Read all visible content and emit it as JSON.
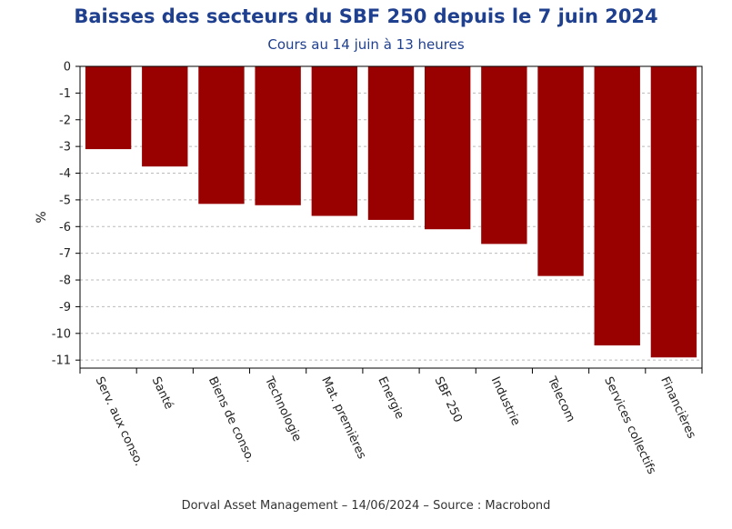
{
  "title": "Baisses des secteurs du SBF 250 depuis le 7 juin 2024",
  "subtitle": "Cours au 14 juin à 13 heures",
  "footer": "Dorval Asset Management – 14/06/2024  –   Source : Macrobond",
  "colors": {
    "bar": "#990000",
    "title": "#1f3f8f",
    "grid": "#bbbbbb"
  },
  "chart_data": {
    "type": "bar",
    "title": "Baisses des secteurs du SBF 250 depuis le 7 juin 2024",
    "subtitle": "Cours au 14 juin à 13 heures",
    "xlabel": "",
    "ylabel": "%",
    "ylim": [
      -11.3,
      0
    ],
    "yticks": [
      0,
      -1,
      -2,
      -3,
      -4,
      -5,
      -6,
      -7,
      -8,
      -9,
      -10,
      -11
    ],
    "grid": true,
    "categories": [
      "Serv. aux conso.",
      "Santé",
      "Biens de conso.",
      "Technologie",
      "Mat. premières",
      "Energie",
      "SBF 250",
      "Industrie",
      "Telecom",
      "Services collectifs",
      "Financières"
    ],
    "values": [
      -3.1,
      -3.75,
      -5.15,
      -5.2,
      -5.6,
      -5.75,
      -6.1,
      -6.65,
      -7.85,
      -10.45,
      -10.9
    ]
  }
}
